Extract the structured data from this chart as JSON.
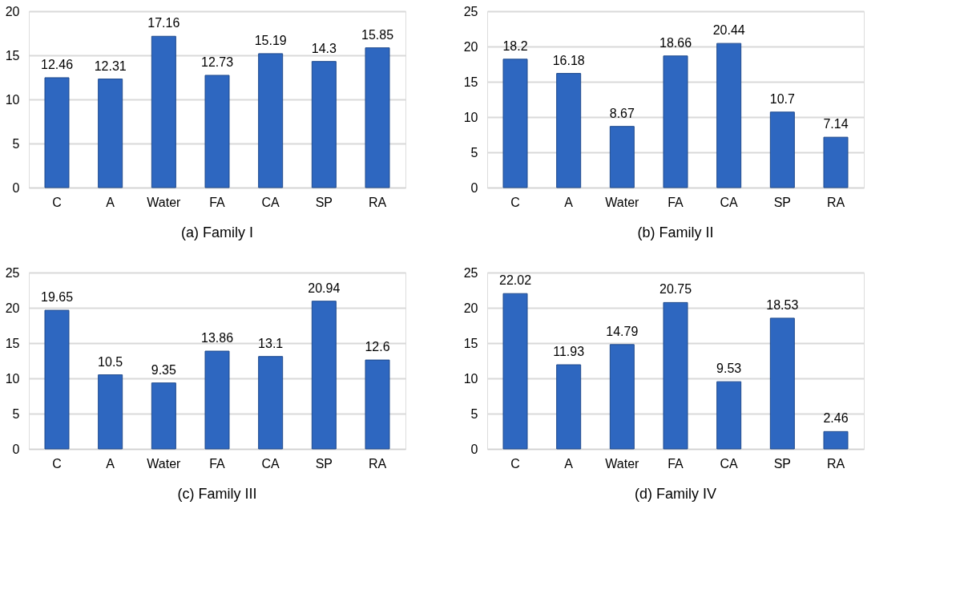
{
  "chart_data": [
    {
      "type": "bar",
      "title": "(a) Family I",
      "categories": [
        "C",
        "A",
        "Water",
        "FA",
        "CA",
        "SP",
        "RA"
      ],
      "values": [
        12.46,
        12.31,
        17.16,
        12.73,
        15.19,
        14.3,
        15.85
      ],
      "color": "#2e67c0",
      "ylim": [
        0,
        20
      ],
      "yticks": [
        0,
        5,
        10,
        15,
        20
      ],
      "grid": "y",
      "data_labels": true
    },
    {
      "type": "bar",
      "title": "(b) Family II",
      "categories": [
        "C",
        "A",
        "Water",
        "FA",
        "CA",
        "SP",
        "RA"
      ],
      "values": [
        18.2,
        16.18,
        8.67,
        18.66,
        20.44,
        10.7,
        7.14
      ],
      "color": "#2e67c0",
      "ylim": [
        0,
        25
      ],
      "yticks": [
        0,
        5,
        10,
        15,
        20,
        25
      ],
      "grid": "y",
      "data_labels": true
    },
    {
      "type": "bar",
      "title": "(c) Family III",
      "categories": [
        "C",
        "A",
        "Water",
        "FA",
        "CA",
        "SP",
        "RA"
      ],
      "values": [
        19.65,
        10.5,
        9.35,
        13.86,
        13.1,
        20.94,
        12.6
      ],
      "color": "#2e67c0",
      "ylim": [
        0,
        25
      ],
      "yticks": [
        0,
        5,
        10,
        15,
        20,
        25
      ],
      "grid": "y",
      "data_labels": true
    },
    {
      "type": "bar",
      "title": "(d) Family IV",
      "categories": [
        "C",
        "A",
        "Water",
        "FA",
        "CA",
        "SP",
        "RA"
      ],
      "values": [
        22.02,
        11.93,
        14.79,
        20.75,
        9.53,
        18.53,
        2.46
      ],
      "color": "#2e67c0",
      "ylim": [
        0,
        25
      ],
      "yticks": [
        0,
        5,
        10,
        15,
        20,
        25
      ],
      "grid": "y",
      "data_labels": true
    }
  ]
}
